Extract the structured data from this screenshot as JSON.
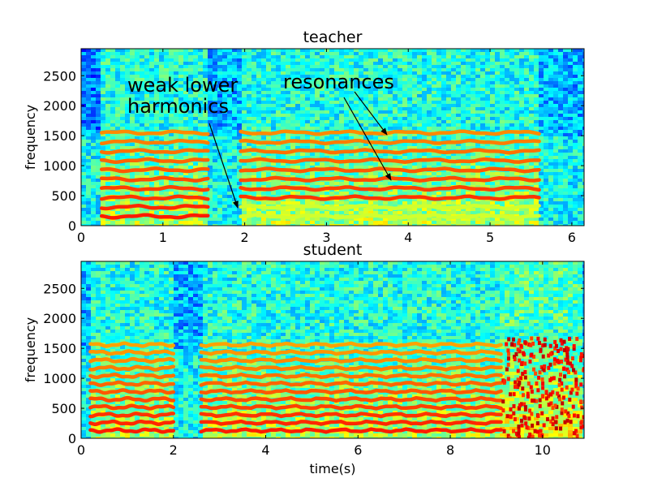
{
  "chart_data": [
    {
      "type": "heatmap",
      "title": "teacher",
      "xlabel": "",
      "ylabel": "frequency",
      "xlim": [
        0,
        6.15
      ],
      "ylim": [
        0,
        2950
      ],
      "xticks": [
        0,
        1,
        2,
        3,
        4,
        5,
        6
      ],
      "yticks": [
        0,
        500,
        1000,
        1500,
        2000,
        2500
      ],
      "colormap": "jet",
      "voiced_segments": [
        [
          0.25,
          1.55
        ],
        [
          1.95,
          5.6
        ]
      ],
      "harmonic_spacing_hz": 155,
      "annotations": [
        {
          "text_lines": [
            "weak lower",
            "harmonics"
          ],
          "points_to": [
            1.92,
            280
          ]
        },
        {
          "text_lines": [
            "resonances"
          ],
          "points_to": [
            [
              3.75,
              1520
            ],
            [
              3.82,
              760
            ]
          ]
        }
      ]
    },
    {
      "type": "heatmap",
      "title": "student",
      "xlabel": "time(s)",
      "ylabel": "frequency",
      "xlim": [
        0,
        10.9
      ],
      "ylim": [
        0,
        2950
      ],
      "xticks": [
        0,
        2,
        4,
        6,
        8,
        10
      ],
      "yticks": [
        0,
        500,
        1000,
        1500,
        2000,
        2500
      ],
      "colormap": "jet",
      "voiced_segments": [
        [
          0.2,
          2.0
        ],
        [
          2.6,
          9.1
        ]
      ],
      "noisy_segment": [
        9.1,
        10.9
      ],
      "harmonic_spacing_hz": 130
    }
  ]
}
